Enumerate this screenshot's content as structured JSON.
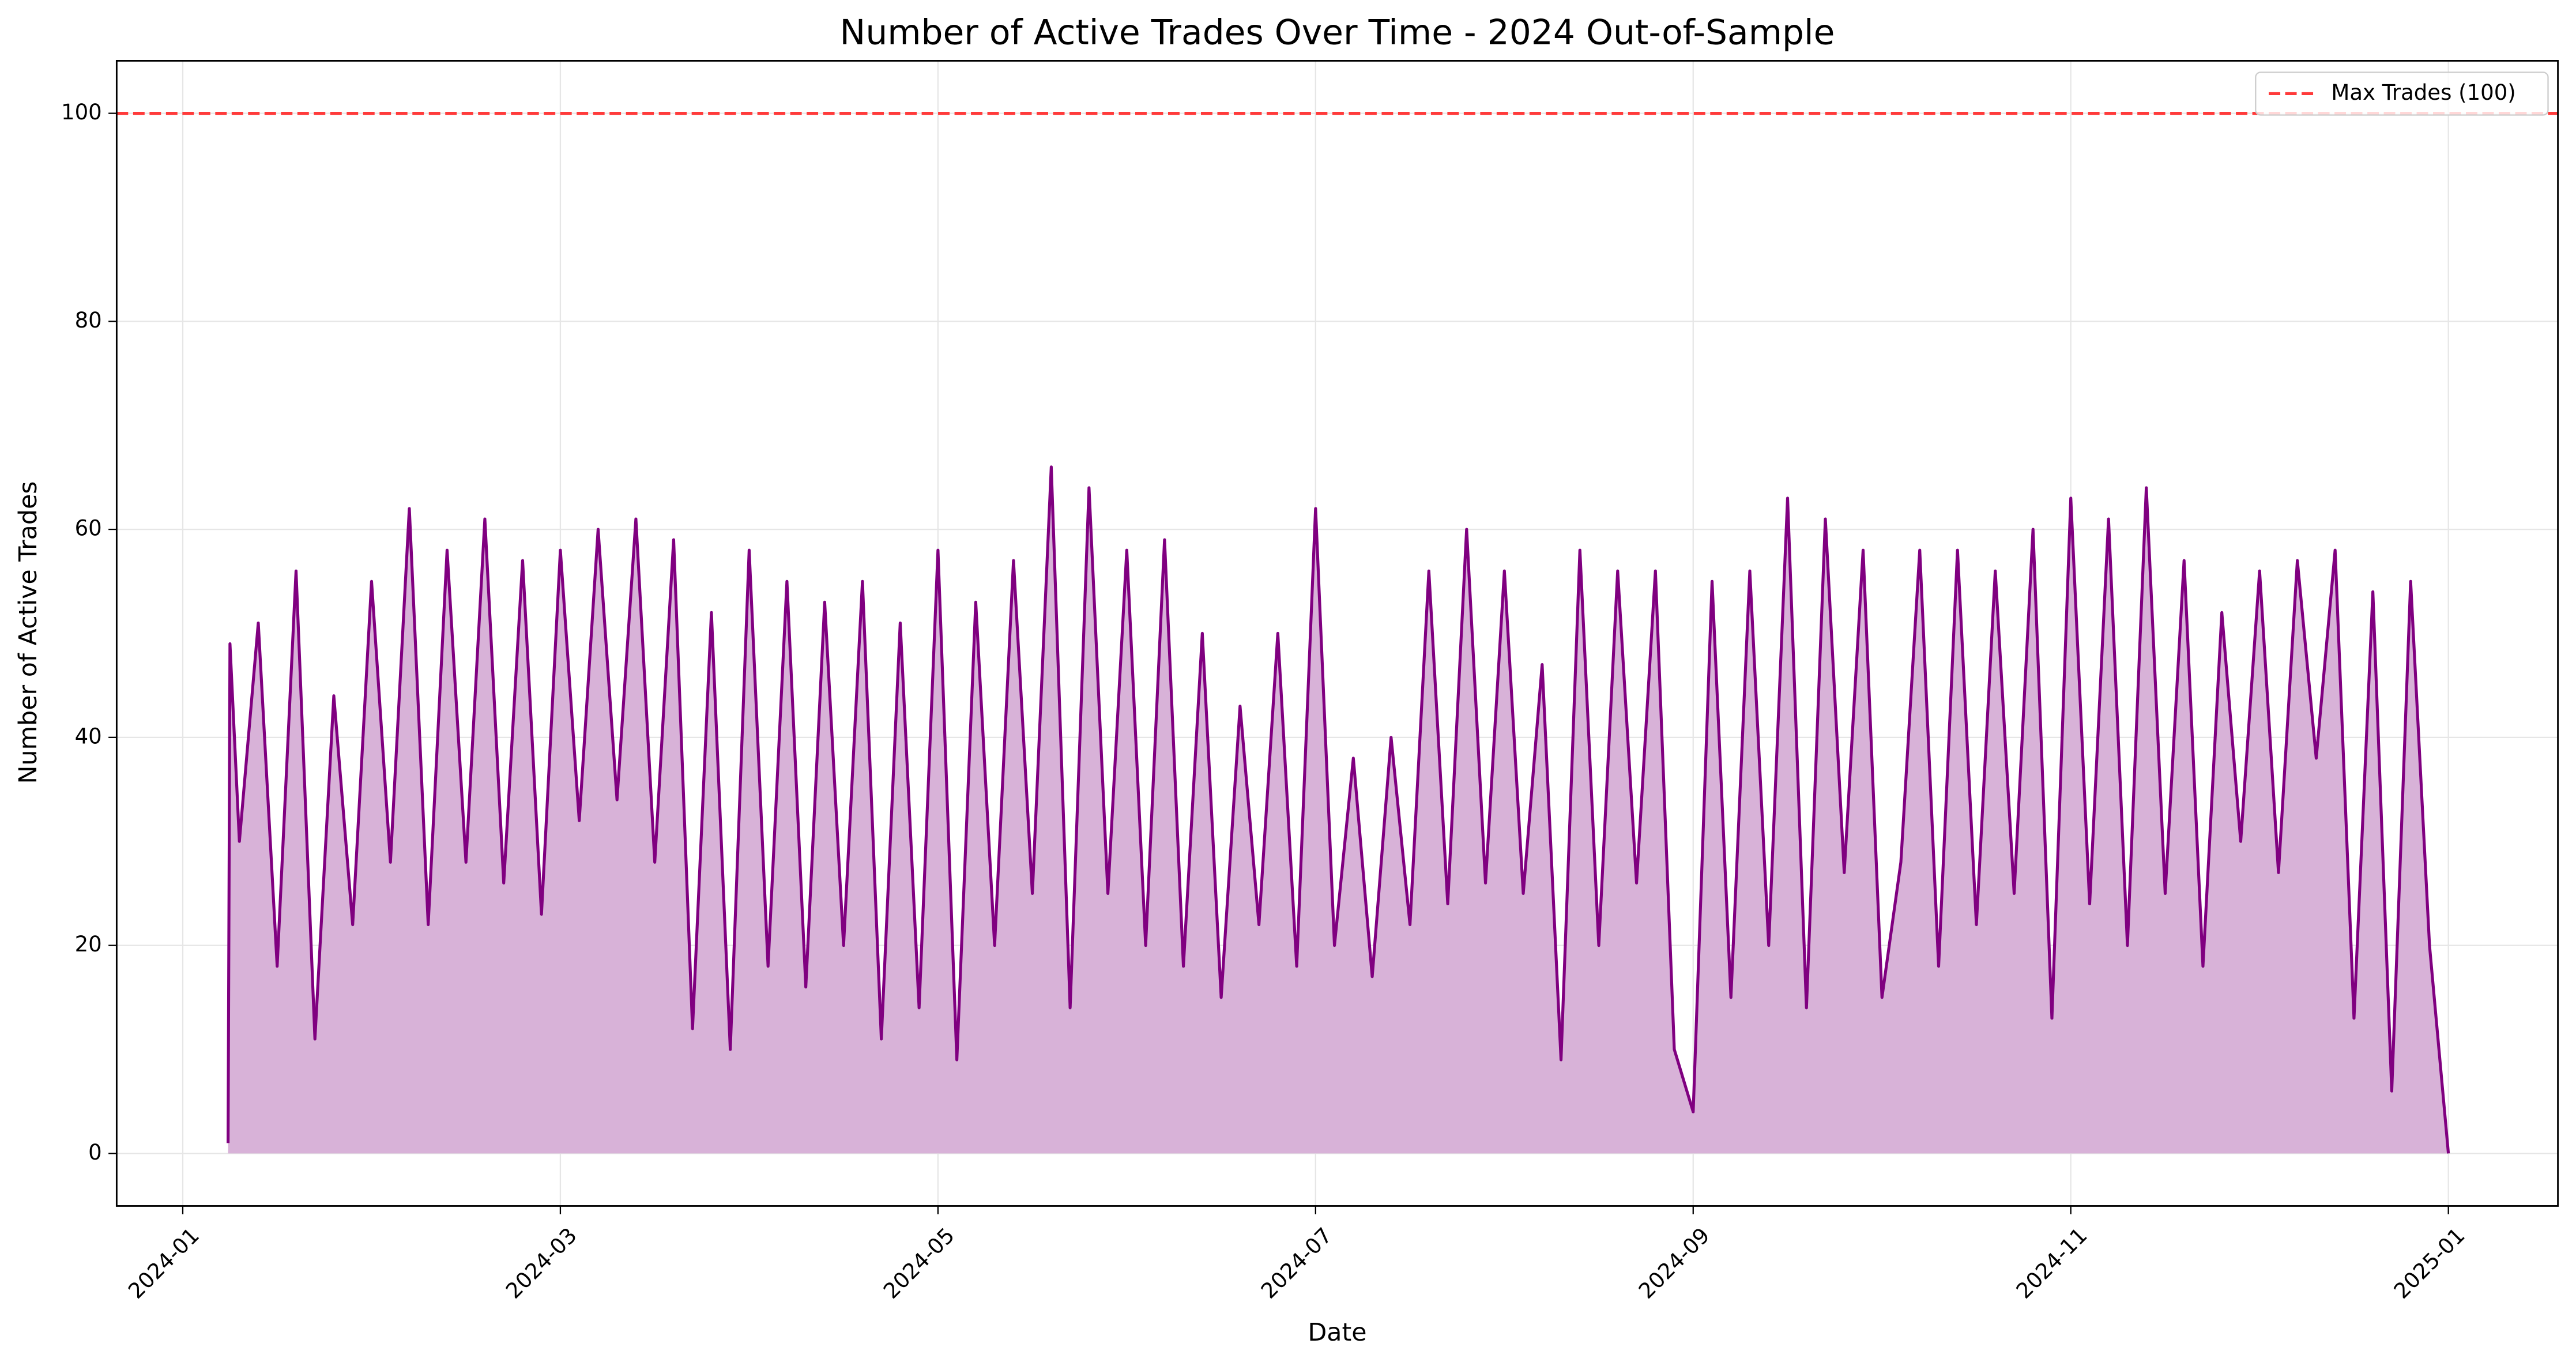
{
  "chart_data": {
    "type": "line",
    "title": "Number of Active Trades Over Time - 2024 Out-of-Sample",
    "xlabel": "Date",
    "ylabel": "Number of Active Trades",
    "x": [
      0.24,
      0.25,
      0.3,
      0.4,
      0.5,
      0.6,
      0.7,
      0.8,
      0.9,
      1.0,
      1.1,
      1.2,
      1.3,
      1.4,
      1.5,
      1.6,
      1.7,
      1.8,
      1.9,
      2.0,
      2.1,
      2.2,
      2.3,
      2.4,
      2.5,
      2.6,
      2.7,
      2.8,
      2.9,
      3.0,
      3.1,
      3.2,
      3.3,
      3.4,
      3.5,
      3.6,
      3.7,
      3.8,
      3.9,
      4.0,
      4.1,
      4.2,
      4.3,
      4.4,
      4.5,
      4.6,
      4.7,
      4.8,
      4.9,
      5.0,
      5.1,
      5.2,
      5.3,
      5.4,
      5.5,
      5.6,
      5.7,
      5.8,
      5.9,
      6.0,
      6.1,
      6.2,
      6.3,
      6.4,
      6.5,
      6.6,
      6.7,
      6.8,
      6.9,
      7.0,
      7.1,
      7.2,
      7.3,
      7.4,
      7.5,
      7.6,
      7.7,
      7.8,
      7.9,
      8.0,
      8.1,
      8.2,
      8.3,
      8.4,
      8.5,
      8.6,
      8.7,
      8.8,
      8.9,
      9.0,
      9.1,
      9.2,
      9.3,
      9.4,
      9.5,
      9.6,
      9.7,
      9.8,
      9.9,
      10.0,
      10.1,
      10.2,
      10.3,
      10.4,
      10.5,
      10.6,
      10.7,
      10.8,
      10.9,
      11.0,
      11.1,
      11.2,
      11.3,
      11.4,
      11.5,
      11.6,
      11.7,
      11.8,
      11.9,
      12.0
    ],
    "series": [
      {
        "color": "#800080",
        "fill_color": "#d8b2d8",
        "values": [
          1,
          49,
          30,
          51,
          18,
          56,
          11,
          44,
          22,
          55,
          28,
          62,
          22,
          58,
          28,
          61,
          26,
          57,
          23,
          58,
          32,
          60,
          34,
          61,
          28,
          59,
          12,
          52,
          10,
          58,
          18,
          55,
          16,
          53,
          20,
          55,
          11,
          51,
          14,
          58,
          9,
          53,
          20,
          57,
          25,
          66,
          14,
          64,
          25,
          58,
          20,
          59,
          18,
          50,
          15,
          43,
          22,
          50,
          18,
          62,
          20,
          38,
          17,
          40,
          22,
          56,
          24,
          60,
          26,
          56,
          25,
          47,
          9,
          58,
          20,
          56,
          26,
          56,
          10,
          4,
          55,
          15,
          56,
          20,
          63,
          14,
          61,
          27,
          58,
          15,
          28,
          58,
          18,
          58,
          22,
          56,
          25,
          60,
          13,
          63,
          24,
          61,
          20,
          64,
          25,
          57,
          18,
          52,
          30,
          56,
          27,
          57,
          38,
          58,
          13,
          54,
          6,
          55,
          20,
          0
        ]
      }
    ],
    "hlines": [
      {
        "value": 100,
        "label": "Max Trades (100)",
        "color": "#ff3b3b"
      }
    ],
    "xlim": [
      -0.35,
      12.58
    ],
    "ylim": [
      -5.05,
      105.05
    ],
    "xticks": [
      {
        "value": 0,
        "label": "2024-01"
      },
      {
        "value": 2,
        "label": "2024-03"
      },
      {
        "value": 4,
        "label": "2024-05"
      },
      {
        "value": 6,
        "label": "2024-07"
      },
      {
        "value": 8,
        "label": "2024-09"
      },
      {
        "value": 10,
        "label": "2024-11"
      },
      {
        "value": 12,
        "label": "2025-01"
      }
    ],
    "yticks": [
      0,
      20,
      40,
      60,
      80,
      100
    ],
    "grid": true,
    "legend": "upper right"
  }
}
